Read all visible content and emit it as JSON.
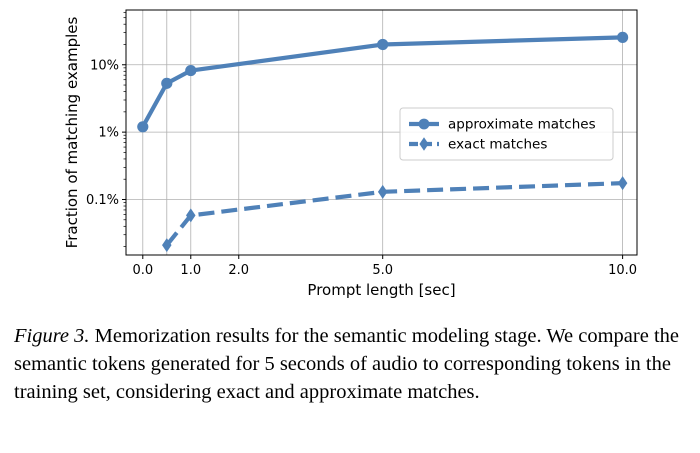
{
  "chart_data": {
    "type": "line",
    "title": "",
    "xlabel": "Prompt length [sec]",
    "ylabel": "Fraction of matching examples",
    "yscale": "log",
    "xlim": [
      -0.35,
      10.3
    ],
    "ylim": [
      0.015,
      65
    ],
    "x_ticks": [
      0.0,
      1.0,
      2.0,
      5.0,
      10.0
    ],
    "x_tick_labels": [
      "0.0",
      "1.0",
      "2.0",
      "5.0",
      "10.0"
    ],
    "extra_vertical_gridlines": [
      0.5
    ],
    "y_ticks": [
      0.1,
      1,
      10
    ],
    "y_tick_labels": [
      "0.1%",
      "1%",
      "10%"
    ],
    "grid": true,
    "legend_position": "center-right",
    "color": "#4f81b8",
    "series": [
      {
        "name": "approximate matches",
        "style": "solid",
        "marker": "circle",
        "x": [
          0.0,
          0.5,
          1.0,
          5.0,
          10.0
        ],
        "y": [
          1.2,
          5.3,
          8.2,
          20.0,
          25.5
        ]
      },
      {
        "name": "exact matches",
        "style": "dashed",
        "marker": "diamond",
        "x": [
          0.5,
          1.0,
          5.0,
          10.0
        ],
        "y": [
          0.021,
          0.058,
          0.13,
          0.175
        ]
      }
    ]
  },
  "caption": {
    "label": "Figure 3.",
    "text": "Memorization results for the semantic modeling stage. We compare the semantic tokens generated for 5 seconds of audio to corresponding tokens in the training set, considering exact and approximate matches."
  }
}
